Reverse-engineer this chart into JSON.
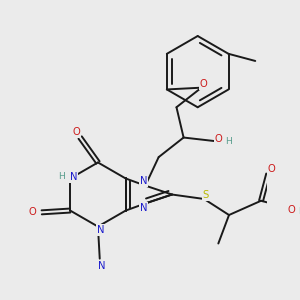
{
  "bg_color": "#ebebeb",
  "bond_color": "#1a1a1a",
  "bond_width": 1.4,
  "atom_colors": {
    "N": "#1a1acc",
    "O": "#cc1a1a",
    "S": "#b8b800",
    "H_label": "#5a9e8e",
    "C": "#1a1a1a"
  },
  "font_size": 7.2,
  "figsize": [
    3.0,
    3.0
  ],
  "dpi": 100
}
